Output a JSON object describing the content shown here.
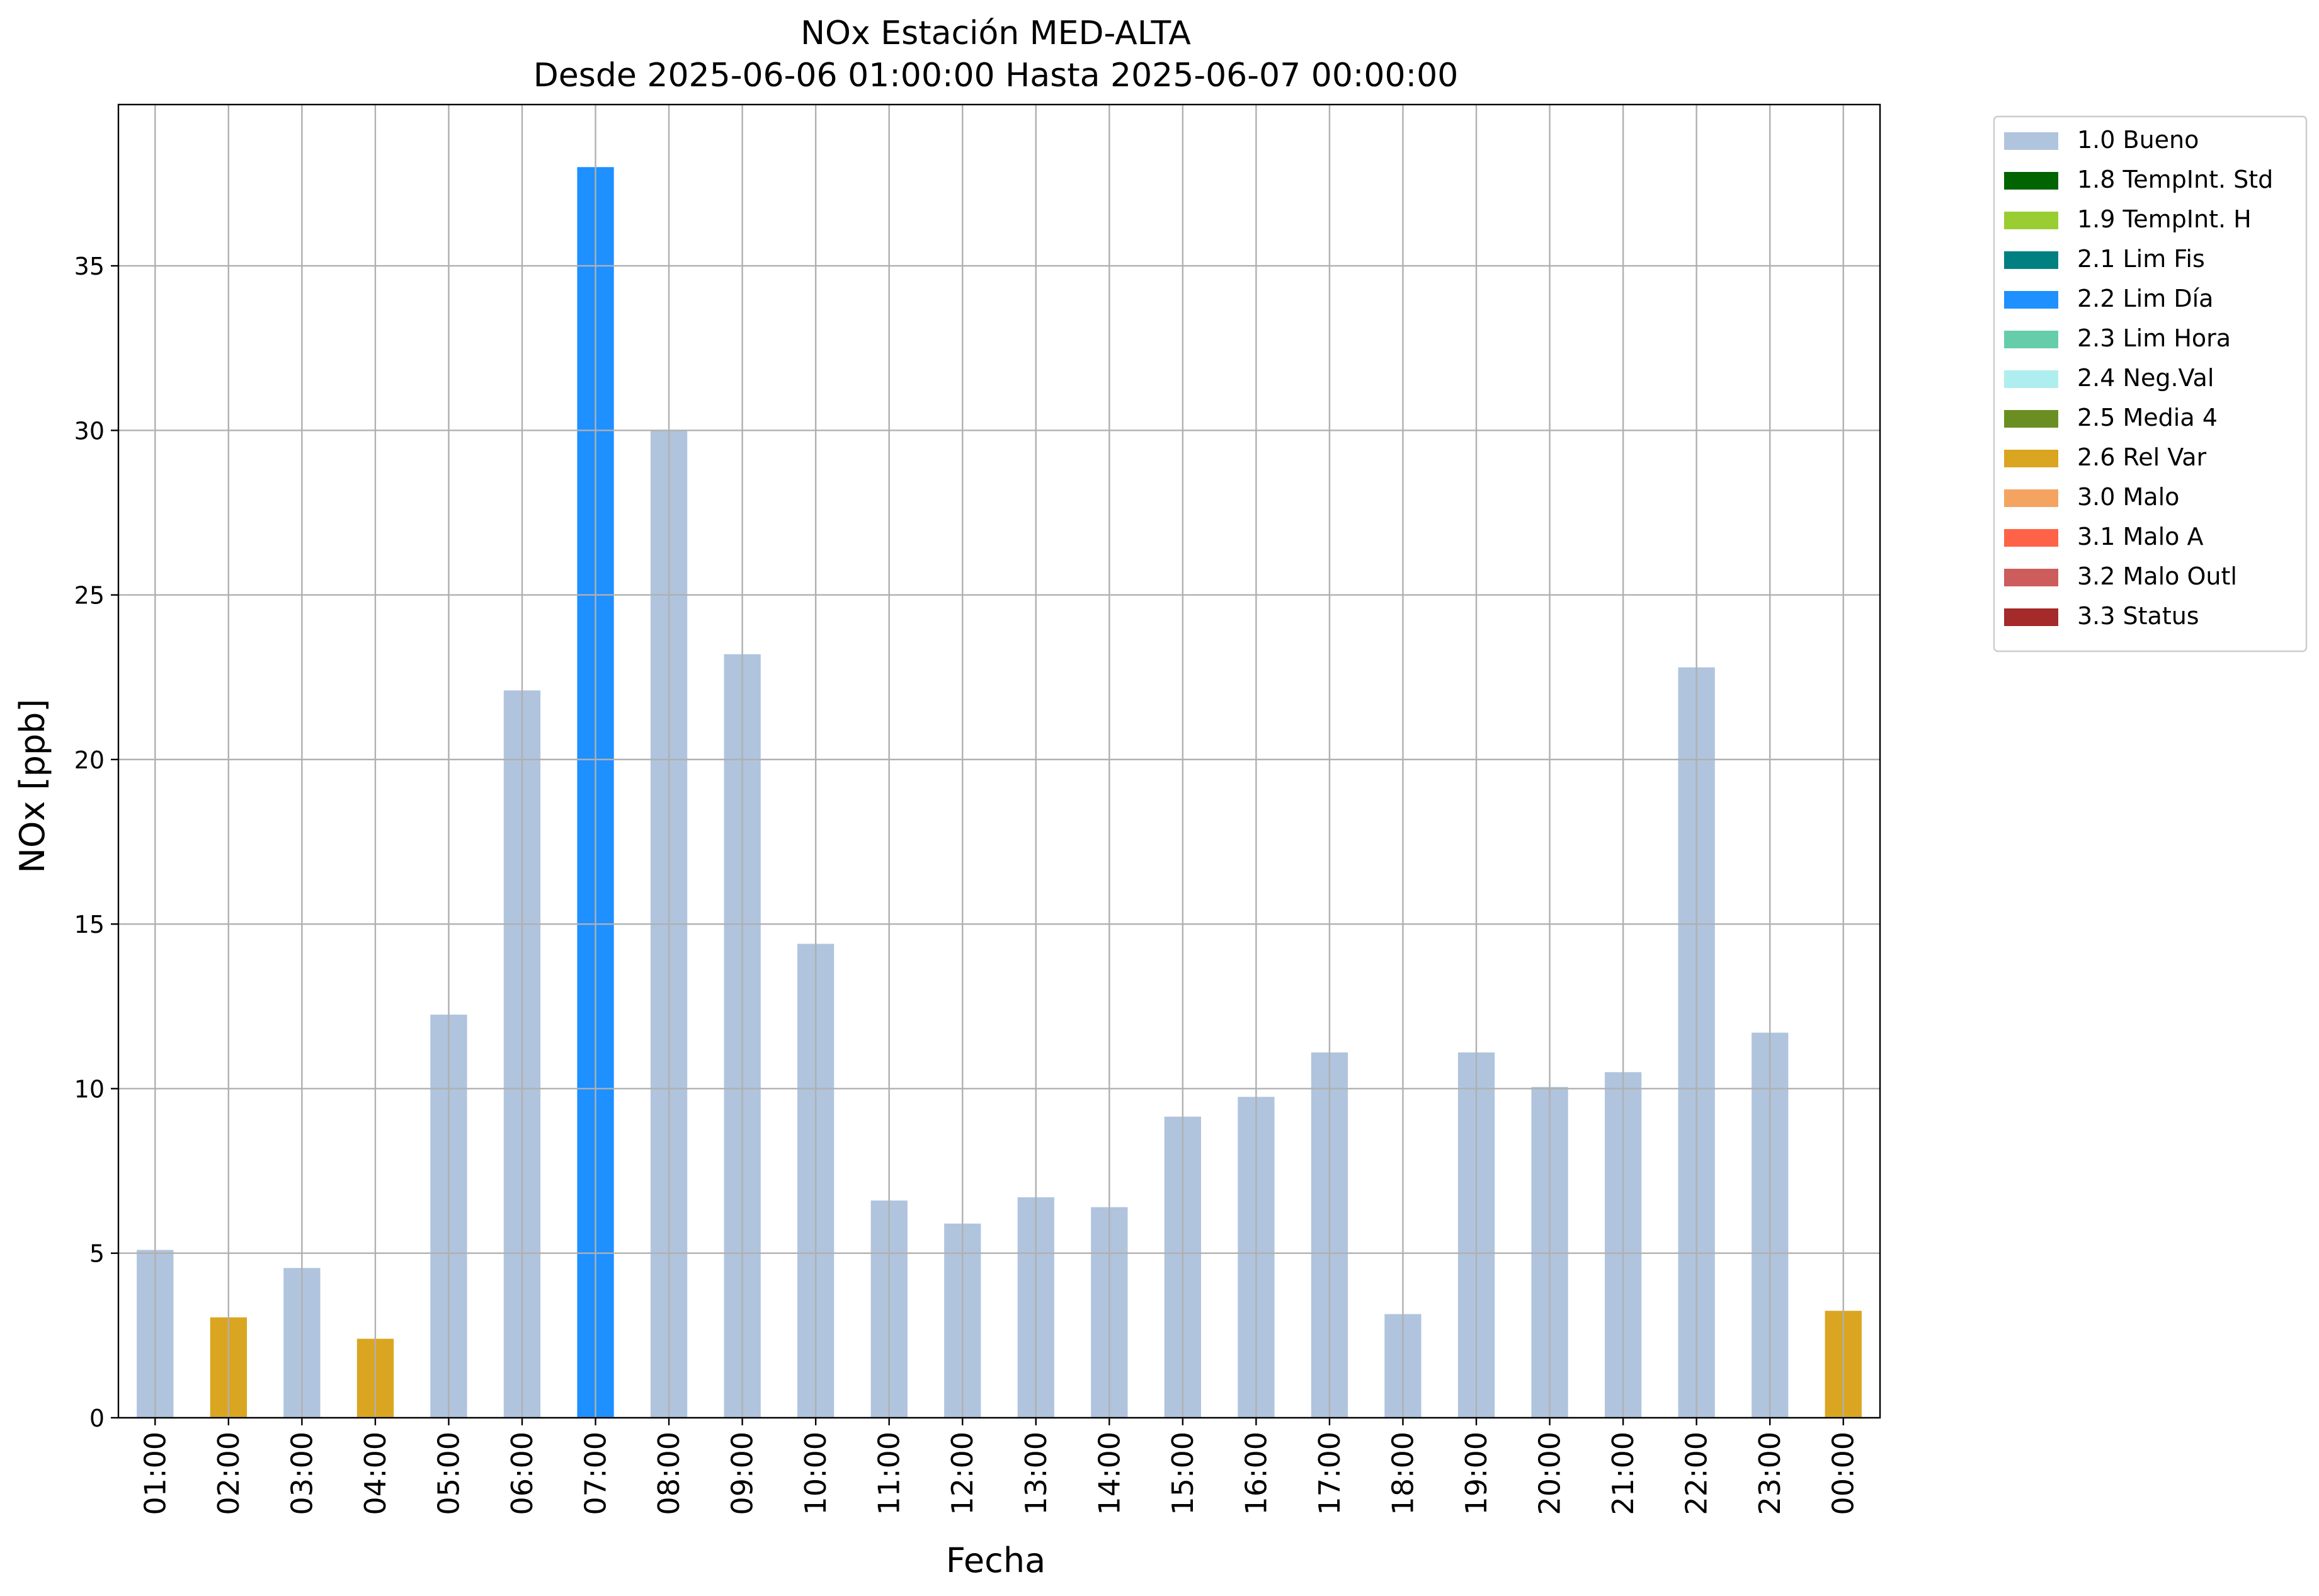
{
  "chart_data": {
    "type": "bar",
    "title": "NOx Estación MED-ALTA",
    "subtitle": "Desde 2025-06-06 01:00:00 Hasta 2025-06-07 00:00:00",
    "xlabel": "Fecha",
    "ylabel": "NOx [ppb]",
    "ylim": [
      0,
      39.9
    ],
    "yticks": [
      0,
      5,
      10,
      15,
      20,
      25,
      30,
      35
    ],
    "grid": true,
    "legend_position": "outside-right",
    "categories": [
      "01:00",
      "02:00",
      "03:00",
      "04:00",
      "05:00",
      "06:00",
      "07:00",
      "08:00",
      "09:00",
      "10:00",
      "11:00",
      "12:00",
      "13:00",
      "14:00",
      "15:00",
      "16:00",
      "17:00",
      "18:00",
      "19:00",
      "20:00",
      "21:00",
      "22:00",
      "23:00",
      "00:00"
    ],
    "values": [
      5.1,
      3.05,
      4.55,
      2.4,
      12.25,
      22.1,
      38.0,
      30.0,
      23.2,
      14.4,
      6.6,
      5.9,
      6.7,
      6.4,
      9.15,
      9.75,
      11.1,
      3.15,
      11.1,
      10.05,
      10.5,
      22.8,
      11.7,
      3.25
    ],
    "flags": [
      "1.0 Bueno",
      "2.6 Rel Var",
      "1.0 Bueno",
      "2.6 Rel Var",
      "1.0 Bueno",
      "1.0 Bueno",
      "2.2 Lim Día",
      "1.0 Bueno",
      "1.0 Bueno",
      "1.0 Bueno",
      "1.0 Bueno",
      "1.0 Bueno",
      "1.0 Bueno",
      "1.0 Bueno",
      "1.0 Bueno",
      "1.0 Bueno",
      "1.0 Bueno",
      "1.0 Bueno",
      "1.0 Bueno",
      "1.0 Bueno",
      "1.0 Bueno",
      "1.0 Bueno",
      "1.0 Bueno",
      "2.6 Rel Var"
    ],
    "legend": [
      {
        "label": "1.0 Bueno",
        "color": "#b0c4de"
      },
      {
        "label": "1.8 TempInt. Std",
        "color": "#006400"
      },
      {
        "label": "1.9 TempInt. H",
        "color": "#9acd32"
      },
      {
        "label": "2.1 Lim Fis",
        "color": "#008080"
      },
      {
        "label": "2.2 Lim Día",
        "color": "#1e90ff"
      },
      {
        "label": "2.3 Lim Hora",
        "color": "#66cdaa"
      },
      {
        "label": "2.4 Neg.Val",
        "color": "#afeeee"
      },
      {
        "label": "2.5 Media 4",
        "color": "#6b8e23"
      },
      {
        "label": "2.6 Rel Var",
        "color": "#daa520"
      },
      {
        "label": "3.0 Malo",
        "color": "#f4a460"
      },
      {
        "label": "3.1 Malo A",
        "color": "#ff6347"
      },
      {
        "label": "3.2 Malo Outl",
        "color": "#cd5c5c"
      },
      {
        "label": "3.3 Status",
        "color": "#a52a2a"
      }
    ]
  }
}
